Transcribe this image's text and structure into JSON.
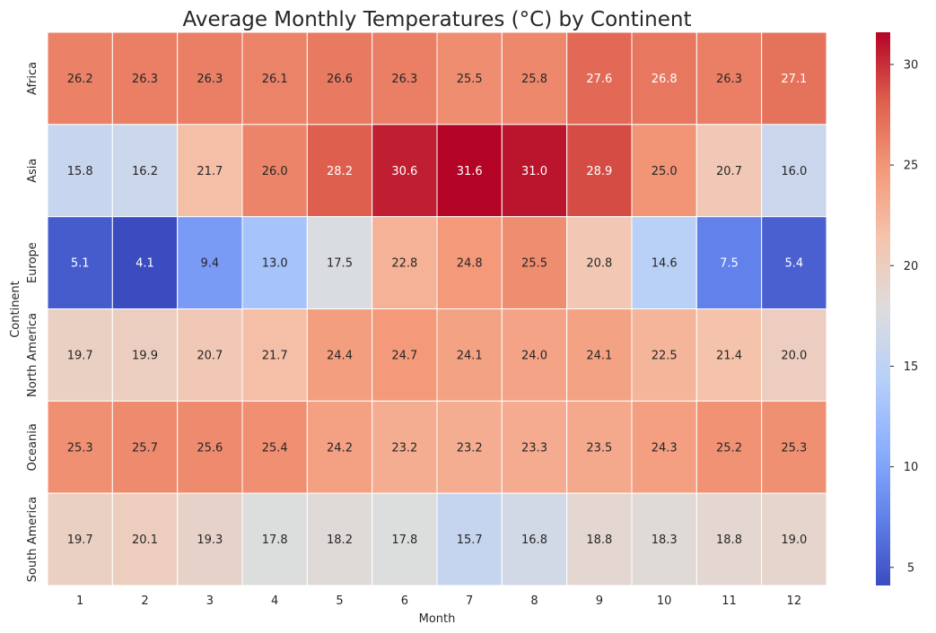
{
  "chart_data": {
    "type": "heatmap",
    "title": "Average Monthly Temperatures (°C) by Continent",
    "xlabel": "Month",
    "ylabel": "Continent",
    "x_categories": [
      "1",
      "2",
      "3",
      "4",
      "5",
      "6",
      "7",
      "8",
      "9",
      "10",
      "11",
      "12"
    ],
    "y_categories": [
      "Africa",
      "Asia",
      "Europe",
      "North America",
      "Oceania",
      "South America"
    ],
    "values": [
      [
        26.2,
        26.3,
        26.3,
        26.1,
        26.6,
        26.3,
        25.5,
        25.8,
        27.6,
        26.8,
        26.3,
        27.1
      ],
      [
        15.8,
        16.2,
        21.7,
        26.0,
        28.2,
        30.6,
        31.6,
        31.0,
        28.9,
        25.0,
        20.7,
        16.0
      ],
      [
        5.1,
        4.1,
        9.4,
        13.0,
        17.5,
        22.8,
        24.8,
        25.5,
        20.8,
        14.6,
        7.5,
        5.4
      ],
      [
        19.7,
        19.9,
        20.7,
        21.7,
        24.4,
        24.7,
        24.1,
        24.0,
        24.1,
        22.5,
        21.4,
        20.0
      ],
      [
        25.3,
        25.7,
        25.6,
        25.4,
        24.2,
        23.2,
        23.2,
        23.3,
        23.5,
        24.3,
        25.2,
        25.3
      ],
      [
        19.7,
        20.1,
        19.3,
        17.8,
        18.2,
        17.8,
        15.7,
        16.8,
        18.8,
        18.3,
        18.8,
        19.0
      ]
    ],
    "value_range": [
      4.1,
      31.6
    ],
    "colormap": "coolwarm",
    "colorbar_ticks": [
      5,
      10,
      15,
      20,
      25,
      30
    ],
    "annotate": true,
    "grid": false
  }
}
